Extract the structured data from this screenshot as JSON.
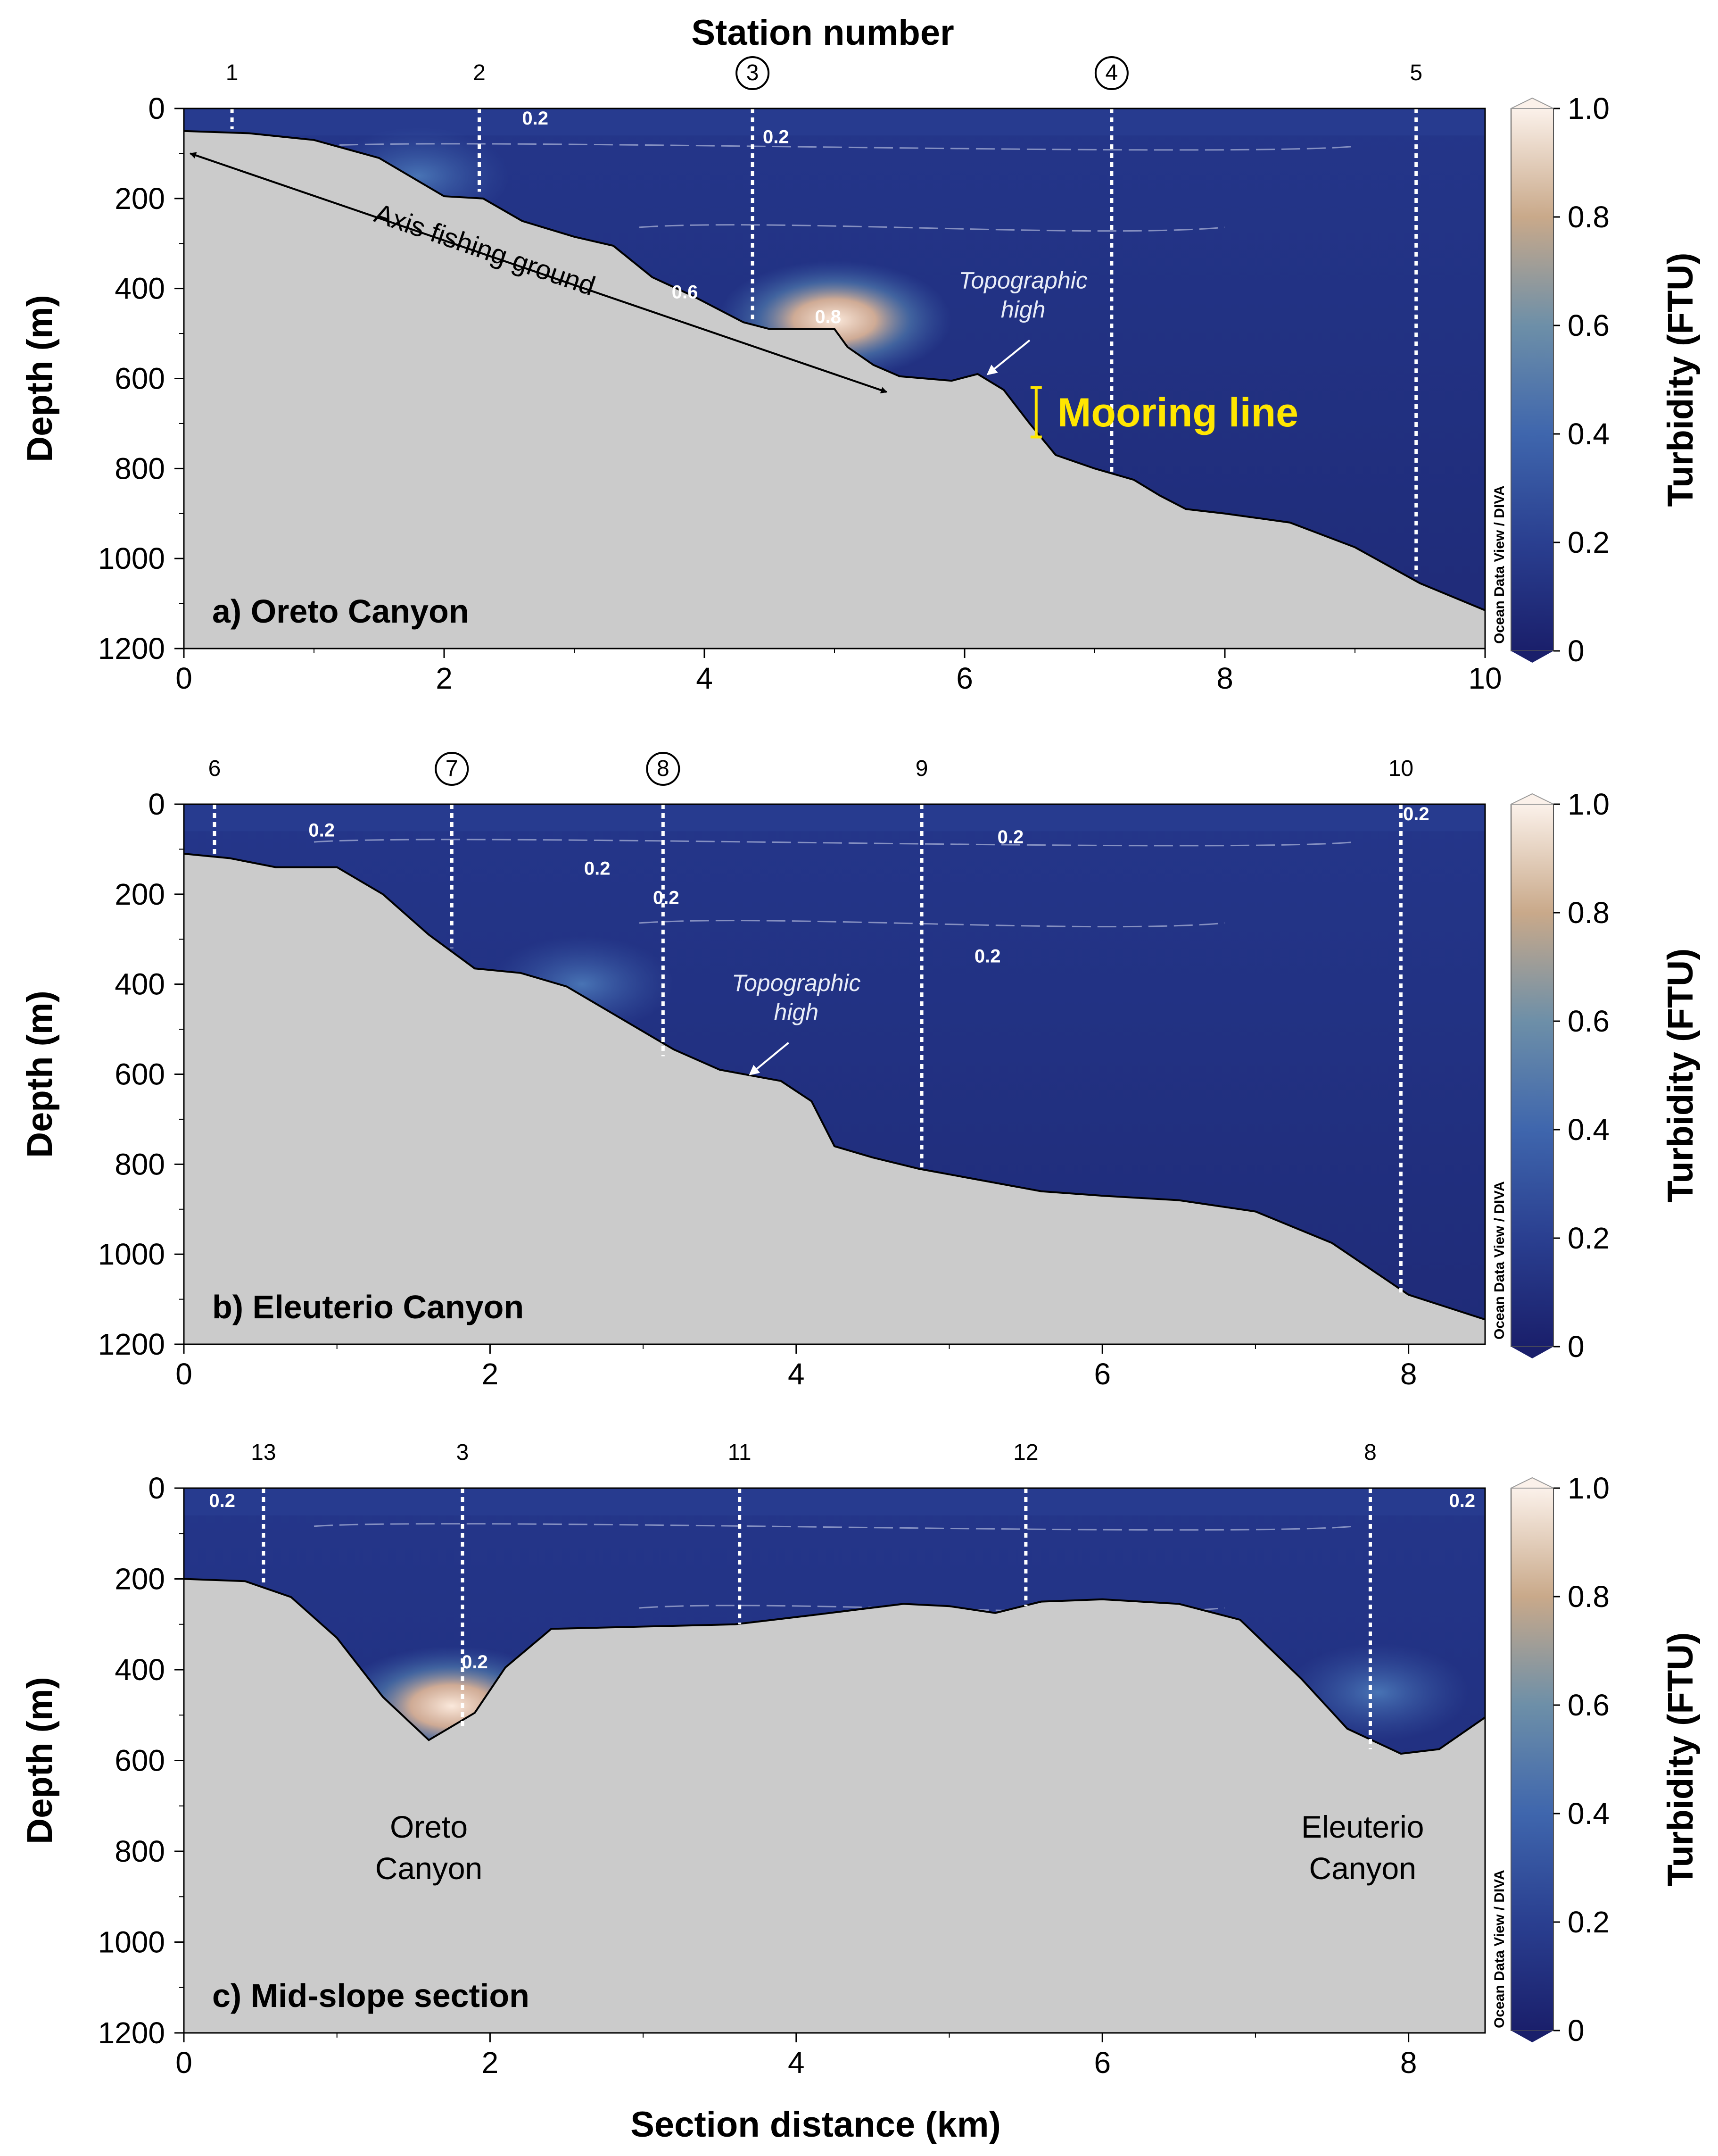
{
  "figure": {
    "top_title": "Station number",
    "bottom_xlabel": "Section distance (km)",
    "ylabel": "Depth (m)",
    "colorbar_label": "Turbidity (FTU)",
    "watermark": "Ocean Data View / DIVA",
    "colors": {
      "water_low": "#1e2a78",
      "water_mid": "#3f66ad",
      "high": "#f6e4d6",
      "seabed": "#cbcbcb"
    }
  },
  "chart_data": [
    {
      "type": "heatmap",
      "title": "a) Oreto Canyon",
      "xlabel": "",
      "ylabel": "Depth (m)",
      "xlim": [
        0,
        10
      ],
      "ylim": [
        1200,
        0
      ],
      "xticks": [
        0,
        2,
        4,
        6,
        8,
        10
      ],
      "yticks": [
        0,
        200,
        400,
        600,
        800,
        1000,
        1200
      ],
      "colorbar": {
        "label": "Turbidity (FTU)",
        "range": [
          0,
          1.0
        ],
        "ticks": [
          0,
          0.2,
          0.4,
          0.6,
          0.8,
          1.0
        ]
      },
      "stations": [
        {
          "label": "1",
          "x": 0.37,
          "bottom": 45,
          "circled": false
        },
        {
          "label": "2",
          "x": 2.27,
          "bottom": 185,
          "circled": false
        },
        {
          "label": "3",
          "x": 4.37,
          "bottom": 470,
          "circled": true
        },
        {
          "label": "4",
          "x": 7.13,
          "bottom": 810,
          "circled": true
        },
        {
          "label": "5",
          "x": 9.47,
          "bottom": 1040,
          "circled": false
        }
      ],
      "bathymetry": [
        [
          0,
          50
        ],
        [
          0.5,
          55
        ],
        [
          1,
          70
        ],
        [
          1.5,
          110
        ],
        [
          2,
          195
        ],
        [
          2.3,
          200
        ],
        [
          2.6,
          250
        ],
        [
          3,
          285
        ],
        [
          3.3,
          305
        ],
        [
          3.6,
          375
        ],
        [
          3.9,
          415
        ],
        [
          4.1,
          445
        ],
        [
          4.3,
          475
        ],
        [
          4.5,
          490
        ],
        [
          5.0,
          490
        ],
        [
          5.1,
          530
        ],
        [
          5.3,
          570
        ],
        [
          5.5,
          595
        ],
        [
          5.9,
          605
        ],
        [
          6.1,
          590
        ],
        [
          6.3,
          625
        ],
        [
          6.5,
          700
        ],
        [
          6.7,
          770
        ],
        [
          7.0,
          800
        ],
        [
          7.3,
          825
        ],
        [
          7.5,
          860
        ],
        [
          7.7,
          890
        ],
        [
          8.0,
          900
        ],
        [
          8.5,
          920
        ],
        [
          9.0,
          975
        ],
        [
          9.5,
          1055
        ],
        [
          10,
          1115
        ]
      ],
      "hotspots": [
        {
          "x": 5.0,
          "depth": 470,
          "turbidity": 0.95
        },
        {
          "x": 1.8,
          "depth": 150,
          "turbidity": 0.45
        }
      ],
      "contour_labels": [
        {
          "text": "0.2",
          "x": 2.7,
          "depth": 0
        },
        {
          "text": "0.2",
          "x": 4.55,
          "depth": 60
        },
        {
          "text": "0.6",
          "x": 3.85,
          "depth": 405
        },
        {
          "text": "0.8",
          "x": 4.95,
          "depth": 460
        }
      ],
      "annotations": [
        {
          "id": "topo",
          "text": "Topographic",
          "text2": "high"
        },
        {
          "id": "axis",
          "text": "Axis fishing ground"
        },
        {
          "id": "mooring",
          "text": "Mooring line"
        }
      ]
    },
    {
      "type": "heatmap",
      "title": "b) Eleuterio Canyon",
      "xlabel": "",
      "ylabel": "Depth (m)",
      "xlim": [
        0,
        8.5
      ],
      "ylim": [
        1200,
        0
      ],
      "xticks": [
        0,
        2,
        4,
        6,
        8
      ],
      "yticks": [
        0,
        200,
        400,
        600,
        800,
        1000,
        1200
      ],
      "colorbar": {
        "label": "Turbidity (FTU)",
        "range": [
          0,
          1.0
        ],
        "ticks": [
          0,
          0.2,
          0.4,
          0.6,
          0.8,
          1.0
        ]
      },
      "stations": [
        {
          "label": "6",
          "x": 0.2,
          "bottom": 110,
          "circled": false
        },
        {
          "label": "7",
          "x": 1.75,
          "bottom": 320,
          "circled": true
        },
        {
          "label": "8",
          "x": 3.13,
          "bottom": 560,
          "circled": true
        },
        {
          "label": "9",
          "x": 4.82,
          "bottom": 810,
          "circled": false
        },
        {
          "label": "10",
          "x": 7.95,
          "bottom": 1085,
          "circled": false
        }
      ],
      "bathymetry": [
        [
          0,
          110
        ],
        [
          0.3,
          120
        ],
        [
          0.6,
          140
        ],
        [
          1.0,
          140
        ],
        [
          1.3,
          200
        ],
        [
          1.6,
          290
        ],
        [
          1.9,
          365
        ],
        [
          2.2,
          375
        ],
        [
          2.5,
          405
        ],
        [
          2.8,
          465
        ],
        [
          3.2,
          545
        ],
        [
          3.5,
          590
        ],
        [
          3.9,
          615
        ],
        [
          4.1,
          660
        ],
        [
          4.25,
          760
        ],
        [
          4.5,
          785
        ],
        [
          4.8,
          810
        ],
        [
          5.2,
          835
        ],
        [
          5.6,
          860
        ],
        [
          6,
          870
        ],
        [
          6.5,
          880
        ],
        [
          7,
          905
        ],
        [
          7.5,
          975
        ],
        [
          8,
          1090
        ],
        [
          8.5,
          1145
        ]
      ],
      "hotspots": [
        {
          "x": 2.6,
          "depth": 400,
          "turbidity": 0.33
        }
      ],
      "contour_labels": [
        {
          "text": "0.2",
          "x": 0.9,
          "depth": 55
        },
        {
          "text": "0.2",
          "x": 2.7,
          "depth": 140
        },
        {
          "text": "0.2",
          "x": 3.15,
          "depth": 205
        },
        {
          "text": "0.2",
          "x": 5.4,
          "depth": 70
        },
        {
          "text": "0.2",
          "x": 5.25,
          "depth": 335
        },
        {
          "text": "0.2",
          "x": 8.05,
          "depth": 0
        }
      ],
      "annotations": [
        {
          "id": "topo",
          "text": "Topographic",
          "text2": "high"
        }
      ]
    },
    {
      "type": "heatmap",
      "title": "c) Mid-slope section",
      "xlabel": "Section distance (km)",
      "ylabel": "Depth (m)",
      "xlim": [
        0,
        8.5
      ],
      "ylim": [
        1200,
        0
      ],
      "xticks": [
        0,
        2,
        4,
        6,
        8
      ],
      "yticks": [
        0,
        200,
        400,
        600,
        800,
        1000,
        1200
      ],
      "colorbar": {
        "label": "Turbidity (FTU)",
        "range": [
          0,
          1.0
        ],
        "ticks": [
          0,
          0.2,
          0.4,
          0.6,
          0.8,
          1.0
        ]
      },
      "stations": [
        {
          "label": "13",
          "x": 0.52,
          "bottom": 215,
          "circled": false
        },
        {
          "label": "3",
          "x": 1.82,
          "bottom": 525,
          "circled": false
        },
        {
          "label": "11",
          "x": 3.63,
          "bottom": 300,
          "circled": false
        },
        {
          "label": "12",
          "x": 5.5,
          "bottom": 260,
          "circled": false
        },
        {
          "label": "8",
          "x": 7.75,
          "bottom": 575,
          "circled": false
        }
      ],
      "bathymetry": [
        [
          0,
          200
        ],
        [
          0.4,
          205
        ],
        [
          0.7,
          240
        ],
        [
          1.0,
          330
        ],
        [
          1.3,
          460
        ],
        [
          1.6,
          555
        ],
        [
          1.9,
          495
        ],
        [
          2.1,
          395
        ],
        [
          2.4,
          310
        ],
        [
          3,
          305
        ],
        [
          3.6,
          300
        ],
        [
          4.1,
          280
        ],
        [
          4.7,
          255
        ],
        [
          5,
          260
        ],
        [
          5.3,
          275
        ],
        [
          5.6,
          250
        ],
        [
          6,
          245
        ],
        [
          6.5,
          255
        ],
        [
          6.9,
          290
        ],
        [
          7.3,
          420
        ],
        [
          7.6,
          530
        ],
        [
          7.95,
          585
        ],
        [
          8.2,
          575
        ],
        [
          8.5,
          505
        ]
      ],
      "hotspots": [
        {
          "x": 1.75,
          "depth": 480,
          "turbidity": 0.9
        },
        {
          "x": 7.8,
          "depth": 450,
          "turbidity": 0.3
        }
      ],
      "contour_labels": [
        {
          "text": "0.2",
          "x": 0.25,
          "depth": 25
        },
        {
          "text": "0.2",
          "x": 1.9,
          "depth": 380
        },
        {
          "text": "0.2",
          "x": 8.35,
          "depth": 25
        }
      ],
      "annotations": [
        {
          "id": "oreto",
          "text": "Oreto",
          "text2": "Canyon"
        },
        {
          "id": "eleuterio",
          "text": "Eleuterio",
          "text2": "Canyon"
        }
      ]
    }
  ]
}
